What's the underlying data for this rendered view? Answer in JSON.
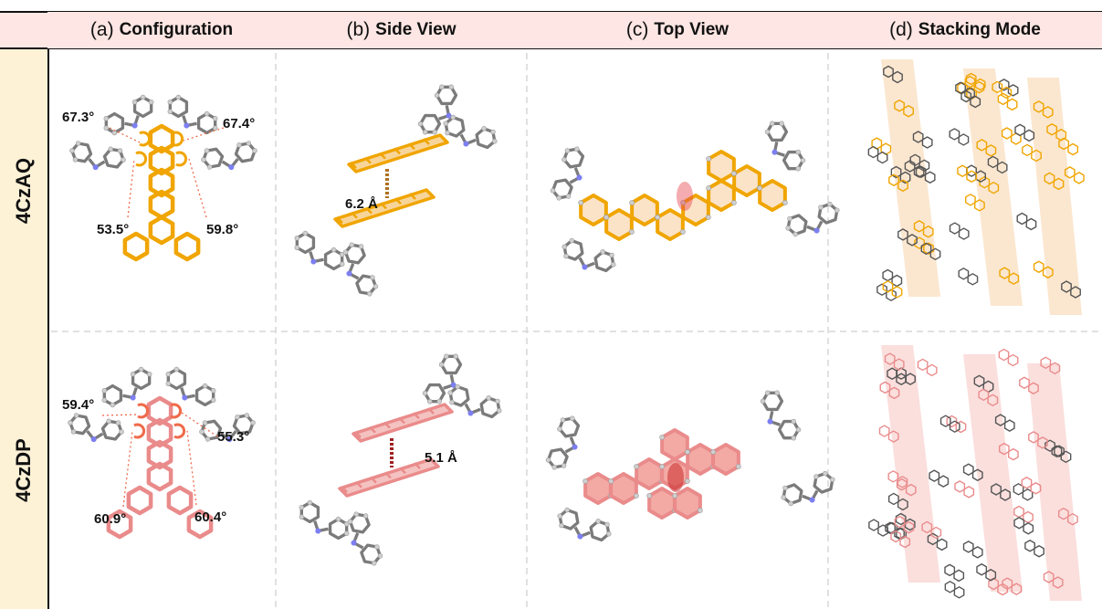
{
  "columns": [
    {
      "letter": "(a)",
      "title": "Configuration"
    },
    {
      "letter": "(b)",
      "title": "Side View"
    },
    {
      "letter": "(c)",
      "title": "Top View"
    },
    {
      "letter": "(d)",
      "title": "Stacking Mode"
    }
  ],
  "rows": [
    {
      "label": "4CzAQ",
      "accent": "#f0a500",
      "highlight": "#f7c9a0",
      "angles": [
        "67.3°",
        "67.4°",
        "53.5°",
        "59.8°"
      ],
      "distance": "6.2 Å"
    },
    {
      "label": "4CzDP",
      "accent": "#ea8b8b",
      "highlight": "#f4b8b4",
      "angles": [
        "59.4°",
        "55.3°",
        "60.9°",
        "60.4°"
      ],
      "distance": "5.1 Å"
    }
  ],
  "colors": {
    "header_bg": "#fde6e3",
    "rowlabel_bg": "#fdf1d6",
    "grid": "#d7d7d7",
    "carbon": "#7b7b7b",
    "hydrogen": "#cfcfcf",
    "nitrogen": "#7c7ff0"
  }
}
